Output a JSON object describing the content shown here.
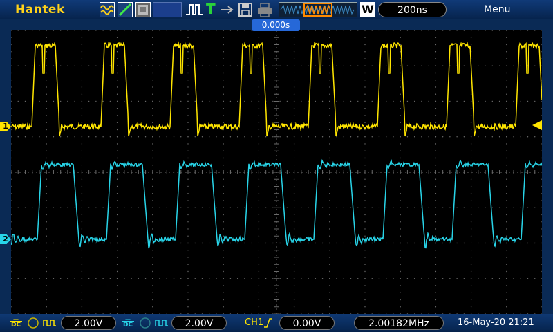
{
  "brand": "Hantek",
  "toolbar": {
    "icons": [
      "waveform-mode-icon",
      "edge-slope-icon",
      "pattern-icon",
      "blank-icon",
      "pulse-width-icon",
      "text-T-icon",
      "arrow-icon",
      "save-disk-icon",
      "printer-icon"
    ],
    "t_label": "T",
    "overview_icon": "memory-overview-icon",
    "w_label": "W",
    "timebase": "200ns",
    "menu": "Menu"
  },
  "trigger_position": "0.000s",
  "channel_markers": {
    "ch1": "1",
    "ch2": "2"
  },
  "colors": {
    "ch1": "#ffe500",
    "ch2": "#28d4e8",
    "grid": "#6a6a6a",
    "background": "#000000"
  },
  "bottom": {
    "ch1_coupling": "DC",
    "ch1_scale": "2.00V",
    "ch2_coupling": "DC",
    "ch2_scale": "2.00V",
    "trigger_source": "CH1",
    "trigger_level": "0.00V",
    "frequency": "2.00182MHz",
    "datetime": "16-May-20 21:21"
  }
}
